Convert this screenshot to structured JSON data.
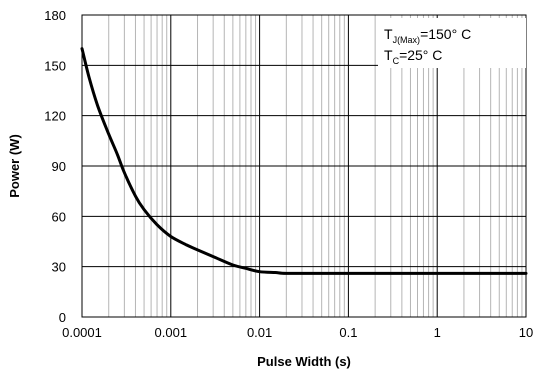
{
  "chart_data": {
    "type": "line",
    "xlabel": "Pulse Width (s)",
    "ylabel": "Power (W)",
    "xscale": "log",
    "xlim": [
      0.0001,
      10
    ],
    "ylim": [
      0,
      180
    ],
    "grid": true,
    "x_ticks": [
      "0.0001",
      "0.001",
      "0.01",
      "0.1",
      "1",
      "10"
    ],
    "y_ticks": [
      "0",
      "30",
      "60",
      "90",
      "120",
      "150",
      "180"
    ],
    "annotations": [
      {
        "main": "T",
        "sub": "J(Max)",
        "rest": "=150° C"
      },
      {
        "main": "T",
        "sub": "C",
        "rest": "=25° C"
      }
    ],
    "annotation_placement": "top-right",
    "series": [
      {
        "color": "#000000",
        "x": [
          0.0001,
          0.00012,
          0.00015,
          0.0002,
          0.00025,
          0.0003,
          0.0004,
          0.0005,
          0.0007,
          0.001,
          0.0015,
          0.002,
          0.003,
          0.005,
          0.007,
          0.01,
          0.015,
          0.02,
          0.05,
          0.1,
          0.5,
          1,
          5,
          10
        ],
        "y": [
          160,
          143,
          126,
          109,
          97,
          86,
          72,
          64,
          55,
          48,
          43,
          40,
          36,
          31,
          29,
          27,
          26.5,
          26,
          26,
          26,
          26,
          26,
          26,
          26
        ]
      }
    ]
  }
}
